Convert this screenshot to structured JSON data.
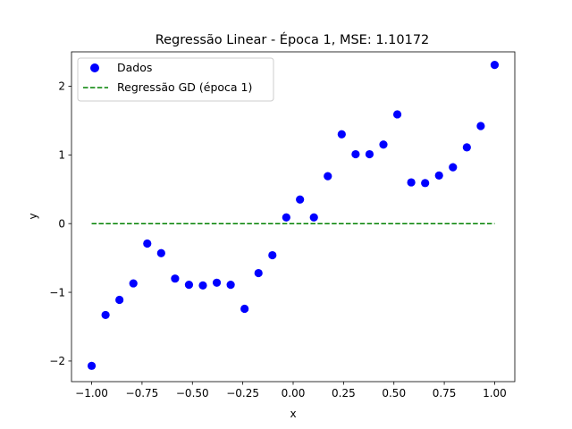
{
  "chart_data": {
    "type": "scatter",
    "title": "Regressão Linear - Época 1, MSE: 1.10172",
    "xlabel": "x",
    "ylabel": "y",
    "xlim": [
      -1.1,
      1.1
    ],
    "ylim": [
      -2.3,
      2.5
    ],
    "xticks": [
      -1.0,
      -0.75,
      -0.5,
      -0.25,
      0.0,
      0.25,
      0.5,
      0.75,
      1.0
    ],
    "xtick_labels": [
      "−1.00",
      "−0.75",
      "−0.50",
      "−0.25",
      "0.00",
      "0.25",
      "0.50",
      "0.75",
      "1.00"
    ],
    "yticks": [
      -2,
      -1,
      0,
      1,
      2
    ],
    "ytick_labels": [
      "−2",
      "−1",
      "0",
      "1",
      "2"
    ],
    "grid": false,
    "legend_position": "top-left",
    "series": [
      {
        "name": "Dados",
        "kind": "scatter",
        "color": "#0000ff",
        "x": [
          -1.0,
          -0.931,
          -0.862,
          -0.793,
          -0.724,
          -0.655,
          -0.586,
          -0.517,
          -0.448,
          -0.379,
          -0.31,
          -0.241,
          -0.172,
          -0.103,
          -0.034,
          0.034,
          0.103,
          0.172,
          0.241,
          0.31,
          0.379,
          0.448,
          0.517,
          0.586,
          0.655,
          0.724,
          0.793,
          0.862,
          0.931,
          1.0
        ],
        "y": [
          -2.07,
          -1.33,
          -1.11,
          -0.87,
          -0.29,
          -0.43,
          -0.8,
          -0.89,
          -0.9,
          -0.86,
          -0.89,
          -1.24,
          -0.72,
          -0.46,
          0.09,
          0.35,
          0.09,
          0.69,
          1.3,
          1.01,
          1.01,
          1.15,
          1.59,
          0.6,
          0.59,
          0.7,
          0.82,
          1.11,
          1.42,
          2.31
        ]
      },
      {
        "name": "Regressão GD (época 1)",
        "kind": "line",
        "style": "dashed",
        "color": "#008000",
        "x": [
          -1.0,
          1.0
        ],
        "y": [
          0.0,
          0.0
        ]
      }
    ]
  }
}
